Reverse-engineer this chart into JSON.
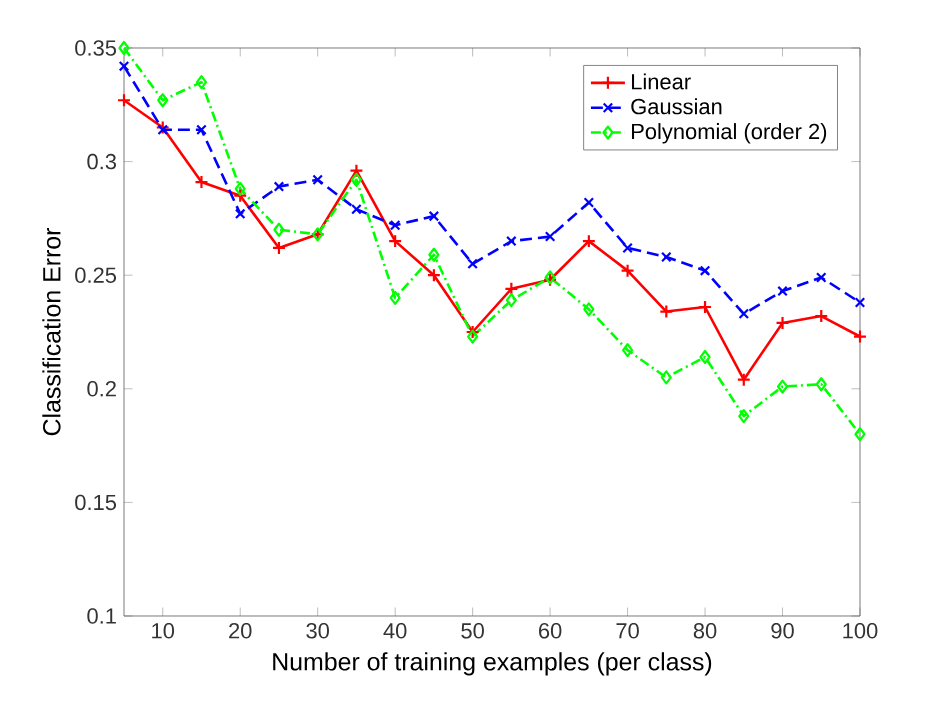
{
  "chart_data": {
    "type": "line",
    "xlabel": "Number of training examples (per class)",
    "ylabel": "Classification Error",
    "x": [
      5,
      10,
      15,
      20,
      25,
      30,
      35,
      40,
      45,
      50,
      55,
      60,
      65,
      70,
      75,
      80,
      85,
      90,
      95,
      100
    ],
    "series": [
      {
        "name": "Linear",
        "color": "#ff0000",
        "marker": "plus",
        "line_style": "solid",
        "values": [
          0.327,
          0.315,
          0.291,
          0.285,
          0.262,
          0.268,
          0.296,
          0.265,
          0.25,
          0.225,
          0.244,
          0.248,
          0.265,
          0.252,
          0.234,
          0.236,
          0.204,
          0.229,
          0.232,
          0.223
        ]
      },
      {
        "name": "Gaussian",
        "color": "#0000ff",
        "marker": "cross",
        "line_style": "dashed",
        "values": [
          0.342,
          0.314,
          0.314,
          0.277,
          0.289,
          0.292,
          0.279,
          0.272,
          0.276,
          0.255,
          0.265,
          0.267,
          0.282,
          0.262,
          0.258,
          0.252,
          0.233,
          0.243,
          0.249,
          0.238
        ]
      },
      {
        "name": "Polynomial (order 2)",
        "color": "#00ff00",
        "marker": "diamond",
        "line_style": "dashdot",
        "values": [
          0.35,
          0.327,
          0.335,
          0.288,
          0.27,
          0.268,
          0.292,
          0.24,
          0.259,
          0.223,
          0.239,
          0.249,
          0.235,
          0.217,
          0.205,
          0.214,
          0.188,
          0.201,
          0.202,
          0.18
        ]
      }
    ],
    "xlim": [
      5,
      100
    ],
    "xticks": [
      10,
      20,
      30,
      40,
      50,
      60,
      70,
      80,
      90,
      100
    ],
    "ylim": [
      0.1,
      0.35
    ],
    "yticks": [
      0.1,
      0.15,
      0.2,
      0.25,
      0.3,
      0.35
    ],
    "grid": false,
    "legend": "top right"
  }
}
